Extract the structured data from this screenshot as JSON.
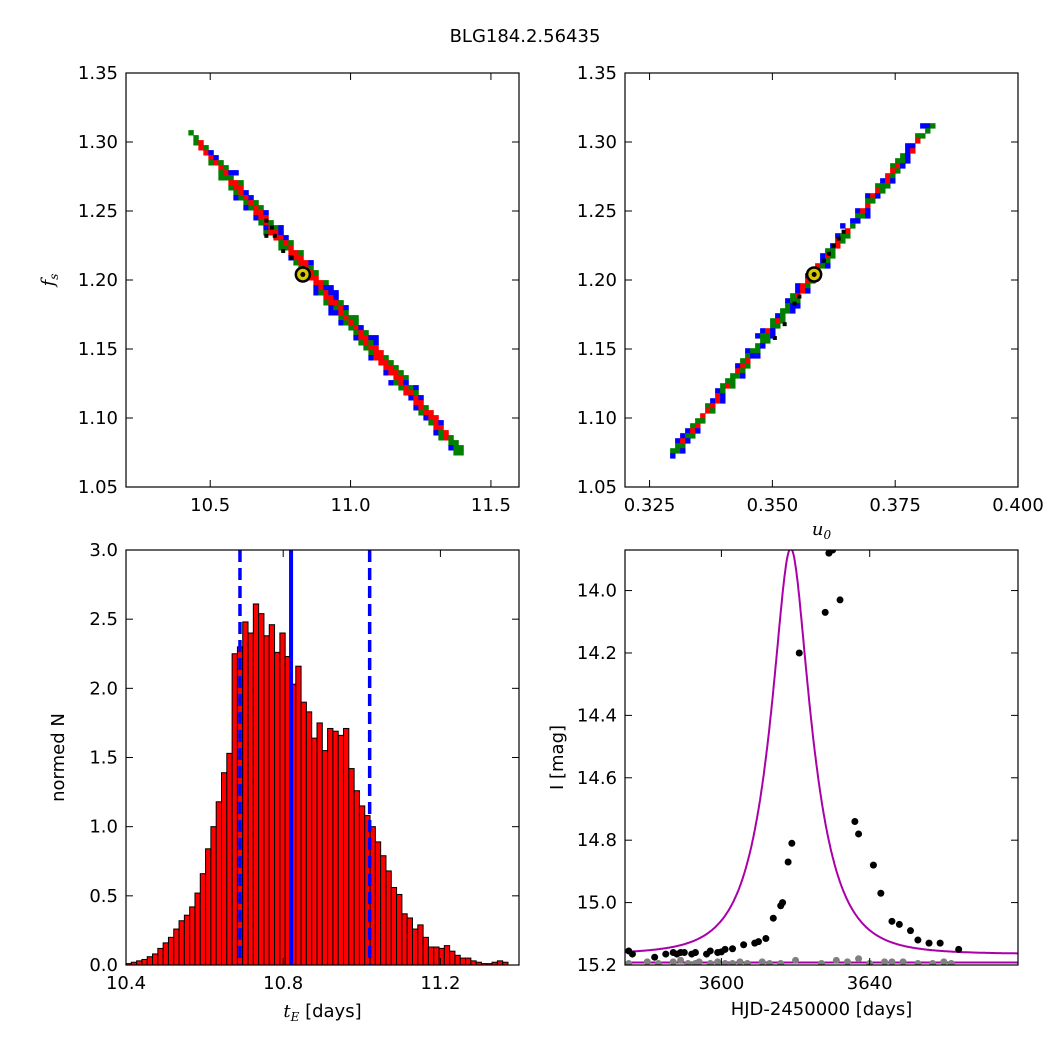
{
  "title": "BLG184.2.56435",
  "chart_data": [
    {
      "id": "fs_vs_tE",
      "type": "heatmap",
      "xlabel": "",
      "ylabel": "f_s",
      "xlim": [
        10.2,
        11.6
      ],
      "ylim": [
        1.05,
        1.35
      ],
      "xticks": [
        "10.5",
        "11.0",
        "11.5"
      ],
      "yticks": [
        "1.05",
        "1.10",
        "1.15",
        "1.20",
        "1.25",
        "1.30",
        "1.35"
      ],
      "color_levels": {
        "inner": "#ff0000",
        "middle": "#008000",
        "outer": "#0000ff"
      },
      "band": {
        "start": [
          10.44,
          1.305
        ],
        "end": [
          11.38,
          1.078
        ],
        "half_widths": [
          0.014,
          0.024,
          0.032
        ]
      },
      "best_fit_marker": [
        10.83,
        1.204
      ],
      "dots": [
        [
          10.7,
          1.243
        ],
        [
          10.72,
          1.238
        ],
        [
          10.7,
          1.232
        ],
        [
          10.73,
          1.232
        ],
        [
          10.76,
          1.221
        ],
        [
          10.79,
          1.216
        ]
      ]
    },
    {
      "id": "fs_vs_u0",
      "type": "heatmap",
      "xlabel": "u_0",
      "ylabel": "",
      "xlim": [
        0.32,
        0.4
      ],
      "ylim": [
        1.05,
        1.35
      ],
      "xticks": [
        "0.325",
        "0.350",
        "0.375",
        "0.400"
      ],
      "yticks": [
        "1.05",
        "1.10",
        "1.15",
        "1.20",
        "1.25",
        "1.30",
        "1.35"
      ],
      "color_levels": {
        "inner": "#ff0000",
        "middle": "#008000",
        "outer": "#0000ff"
      },
      "band": {
        "start": [
          0.3302,
          1.075
        ],
        "end": [
          0.3815,
          1.31
        ],
        "half_widths": [
          0.0004,
          0.0009,
          0.0013
        ]
      },
      "best_fit_marker": [
        0.3585,
        1.204
      ],
      "dots": [
        [
          0.3585,
          1.204
        ],
        [
          0.3605,
          1.214
        ],
        [
          0.3615,
          1.219
        ],
        [
          0.3625,
          1.225
        ],
        [
          0.3635,
          1.23
        ],
        [
          0.3645,
          1.235
        ],
        [
          0.3555,
          1.188
        ],
        [
          0.3545,
          1.183
        ],
        [
          0.3525,
          1.168
        ],
        [
          0.3505,
          1.158
        ]
      ]
    },
    {
      "id": "tE_histogram",
      "type": "bar",
      "xlabel": "t_E [days]",
      "ylabel": "normed N",
      "xlim": [
        10.4,
        11.4
      ],
      "ylim": [
        0,
        3.0
      ],
      "xticks": [
        "10.4",
        "10.8",
        "11.2"
      ],
      "yticks": [
        "0.0",
        "0.5",
        "1.0",
        "1.5",
        "2.0",
        "2.5",
        "3.0"
      ],
      "bin_start": 10.4,
      "bin_width": 0.0135,
      "values": [
        0.01,
        0.02,
        0.03,
        0.04,
        0.06,
        0.08,
        0.12,
        0.16,
        0.2,
        0.26,
        0.32,
        0.36,
        0.42,
        0.52,
        0.66,
        0.84,
        1.0,
        1.18,
        1.39,
        1.53,
        2.25,
        2.3,
        2.48,
        2.4,
        2.61,
        2.54,
        2.38,
        2.46,
        2.26,
        2.4,
        2.23,
        2.03,
        2.16,
        1.9,
        1.83,
        1.64,
        1.75,
        1.55,
        1.71,
        1.69,
        1.66,
        1.71,
        1.42,
        1.26,
        1.15,
        1.08,
        1.0,
        0.89,
        0.79,
        0.68,
        0.56,
        0.51,
        0.37,
        0.34,
        0.26,
        0.29,
        0.2,
        0.13,
        0.13,
        0.12,
        0.14,
        0.1,
        0.07,
        0.05,
        0.05,
        0.03,
        0.02,
        0.01,
        0.01,
        0.02,
        0.03,
        0.02
      ],
      "bar_color": "#ff0000",
      "solid_line": 10.82,
      "dashed_lines": [
        10.69,
        11.02
      ],
      "line_color": "#0000ff"
    },
    {
      "id": "light_curve",
      "type": "line",
      "xlabel": "HJD-2450000 [days]",
      "ylabel": "I [mag]",
      "xlim": [
        3574,
        3680
      ],
      "ylim": [
        15.2,
        13.87
      ],
      "xticks": [
        "3600",
        "3640"
      ],
      "yticks": [
        "14.0",
        "14.2",
        "14.4",
        "14.6",
        "14.8",
        "15.0",
        "15.2"
      ],
      "model": {
        "t0": 3618.7,
        "tE": 10.83,
        "u0": 0.358,
        "baseline": 15.165,
        "fs": 1.2
      },
      "series": [
        {
          "color": "#000000",
          "x": [
            3575,
            3576,
            3582,
            3585,
            3587,
            3588,
            3589,
            3590,
            3592,
            3593,
            3596,
            3597,
            3599,
            3600,
            3601,
            3603,
            3606,
            3609,
            3610,
            3612,
            3614,
            3616,
            3616.5,
            3618,
            3619,
            3621,
            3628,
            3629,
            3630,
            3632,
            3636,
            3637,
            3641,
            3643,
            3646,
            3648,
            3651,
            3653,
            3656,
            3659,
            3664
          ],
          "y": [
            15.155,
            15.165,
            15.175,
            15.165,
            15.16,
            15.165,
            15.16,
            15.16,
            15.165,
            15.16,
            15.165,
            15.155,
            15.16,
            15.158,
            15.15,
            15.148,
            15.135,
            15.13,
            15.125,
            15.115,
            15.05,
            15.01,
            15.0,
            14.87,
            14.81,
            14.2,
            14.07,
            13.88,
            13.87,
            14.03,
            14.74,
            14.78,
            14.88,
            14.97,
            15.06,
            15.07,
            15.09,
            15.12,
            15.13,
            15.13,
            15.15
          ]
        },
        {
          "color": "#808080",
          "x": [
            3575,
            3580,
            3583,
            3587,
            3589,
            3591,
            3593,
            3594,
            3597,
            3599,
            3601,
            3603,
            3605,
            3607,
            3611,
            3613,
            3616,
            3620,
            3627,
            3631,
            3634,
            3637,
            3640,
            3644,
            3646,
            3649,
            3653,
            3657,
            3660,
            3662
          ],
          "y": [
            15.195,
            15.19,
            15.195,
            15.19,
            15.185,
            15.195,
            15.195,
            15.19,
            15.195,
            15.19,
            15.195,
            15.195,
            15.19,
            15.195,
            15.19,
            15.195,
            15.195,
            15.185,
            15.195,
            15.185,
            15.19,
            15.18,
            15.195,
            15.19,
            15.19,
            15.19,
            15.195,
            15.195,
            15.19,
            15.195
          ]
        }
      ],
      "model_color": "#aa00aa"
    }
  ]
}
